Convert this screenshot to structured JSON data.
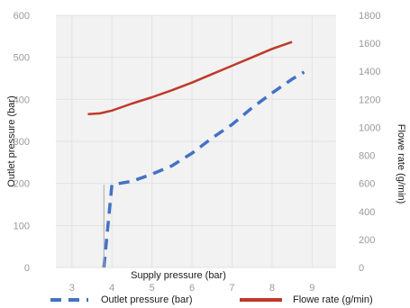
{
  "chart_data": {
    "type": "line",
    "xlabel": "Supply pressure (bar)",
    "ylabel_left": "Outlet pressure (bar)",
    "ylabel_right": "Flowe rate (g/min)",
    "x_ticks": [
      "3",
      "4",
      "5",
      "6",
      "7",
      "8",
      "9"
    ],
    "xlim": [
      2.6,
      9.6
    ],
    "ylim_left": [
      0,
      600
    ],
    "ylim_right": [
      0,
      1800
    ],
    "y_ticks_left": [
      "0",
      "100",
      "200",
      "300",
      "400",
      "500",
      "600"
    ],
    "y_ticks_right": [
      "0",
      "200",
      "400",
      "600",
      "800",
      "1000",
      "1200",
      "1400",
      "1600",
      "1800"
    ],
    "grid": true,
    "legend_position": "bottom",
    "series": [
      {
        "name": "Outlet pressure (bar)",
        "axis": "left",
        "color": "#4472C4",
        "dash": "dashed",
        "x": [
          3.8,
          4.0,
          4.5,
          5.0,
          5.5,
          6.0,
          6.5,
          7.0,
          7.5,
          8.0,
          8.5,
          8.8
        ],
        "values": [
          0,
          197,
          205,
          222,
          242,
          272,
          308,
          340,
          380,
          415,
          448,
          465
        ]
      },
      {
        "name": "Flowe rate (g/min)",
        "axis": "right",
        "color": "#C0392B",
        "dash": "solid",
        "x": [
          3.4,
          3.7,
          4.0,
          4.5,
          5.0,
          5.5,
          6.0,
          6.5,
          7.0,
          7.5,
          8.0,
          8.5
        ],
        "values": [
          1095,
          1100,
          1120,
          1170,
          1215,
          1265,
          1320,
          1380,
          1440,
          1500,
          1560,
          1610
        ]
      }
    ]
  }
}
